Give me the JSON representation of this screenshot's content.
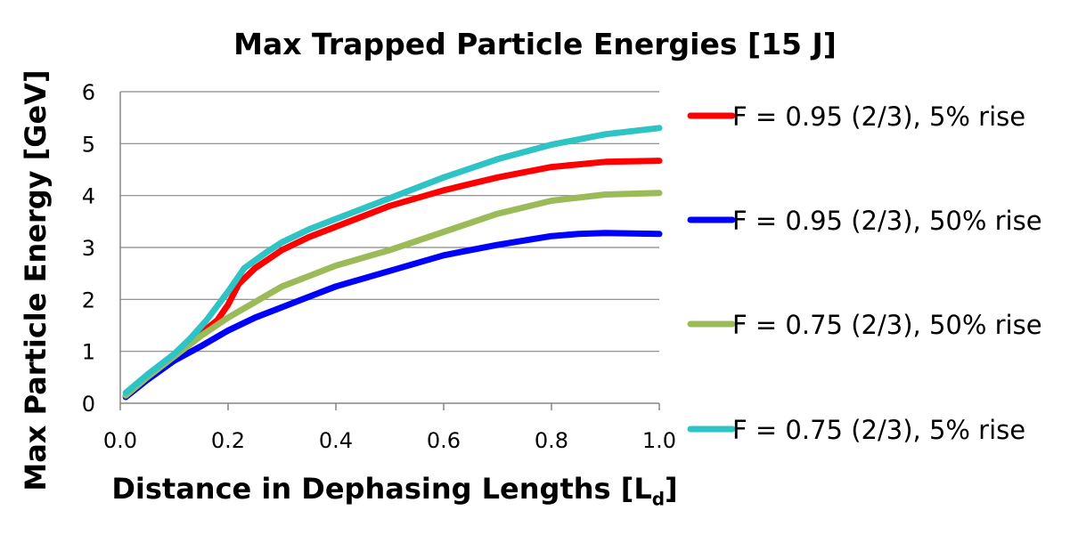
{
  "chart_data": {
    "type": "line",
    "title": "Max Trapped Particle Energies [15 J]",
    "ylabel": "Max Particle Energy [GeV]",
    "xlabel": "Distance in Dephasing Lengths [L",
    "xlabel_sub": "d",
    "xlabel_end": "]",
    "xlim": [
      0.0,
      1.0
    ],
    "ylim": [
      0,
      6
    ],
    "x_ticks": [
      "0.0",
      "0.2",
      "0.4",
      "0.6",
      "0.8",
      "1.0"
    ],
    "y_ticks": [
      "0",
      "1",
      "2",
      "3",
      "4",
      "5",
      "6"
    ],
    "grid": "horizontal",
    "legend_position": "right",
    "series": [
      {
        "name": "F = 0.95 (2/3), 5% rise",
        "color": "#ff0000",
        "x": [
          0.01,
          0.05,
          0.1,
          0.15,
          0.18,
          0.2,
          0.22,
          0.25,
          0.3,
          0.35,
          0.4,
          0.5,
          0.6,
          0.7,
          0.8,
          0.9,
          1.0
        ],
        "y": [
          0.15,
          0.5,
          0.9,
          1.35,
          1.6,
          1.9,
          2.3,
          2.6,
          2.95,
          3.2,
          3.4,
          3.8,
          4.1,
          4.35,
          4.55,
          4.65,
          4.67
        ]
      },
      {
        "name": "F = 0.95 (2/3), 50% rise",
        "color": "#0000ff",
        "x": [
          0.01,
          0.05,
          0.1,
          0.15,
          0.2,
          0.25,
          0.3,
          0.35,
          0.4,
          0.5,
          0.6,
          0.7,
          0.8,
          0.85,
          0.9,
          0.95,
          1.0
        ],
        "y": [
          0.12,
          0.45,
          0.82,
          1.1,
          1.4,
          1.65,
          1.85,
          2.05,
          2.25,
          2.55,
          2.85,
          3.05,
          3.22,
          3.26,
          3.28,
          3.27,
          3.26
        ]
      },
      {
        "name": "F = 0.75 (2/3), 50% rise",
        "color": "#9bbb59",
        "x": [
          0.01,
          0.05,
          0.1,
          0.15,
          0.2,
          0.25,
          0.3,
          0.35,
          0.4,
          0.5,
          0.6,
          0.7,
          0.8,
          0.9,
          1.0
        ],
        "y": [
          0.15,
          0.5,
          0.9,
          1.3,
          1.65,
          1.95,
          2.25,
          2.45,
          2.65,
          2.95,
          3.3,
          3.65,
          3.9,
          4.02,
          4.05
        ]
      },
      {
        "name": "F = 0.75 (2/3), 5% rise",
        "color": "#2ec4c6",
        "x": [
          0.01,
          0.05,
          0.1,
          0.13,
          0.16,
          0.2,
          0.23,
          0.27,
          0.3,
          0.35,
          0.4,
          0.5,
          0.6,
          0.7,
          0.8,
          0.9,
          1.0
        ],
        "y": [
          0.2,
          0.55,
          0.95,
          1.25,
          1.6,
          2.15,
          2.6,
          2.9,
          3.1,
          3.35,
          3.55,
          3.95,
          4.35,
          4.7,
          4.98,
          5.18,
          5.3
        ]
      }
    ]
  }
}
